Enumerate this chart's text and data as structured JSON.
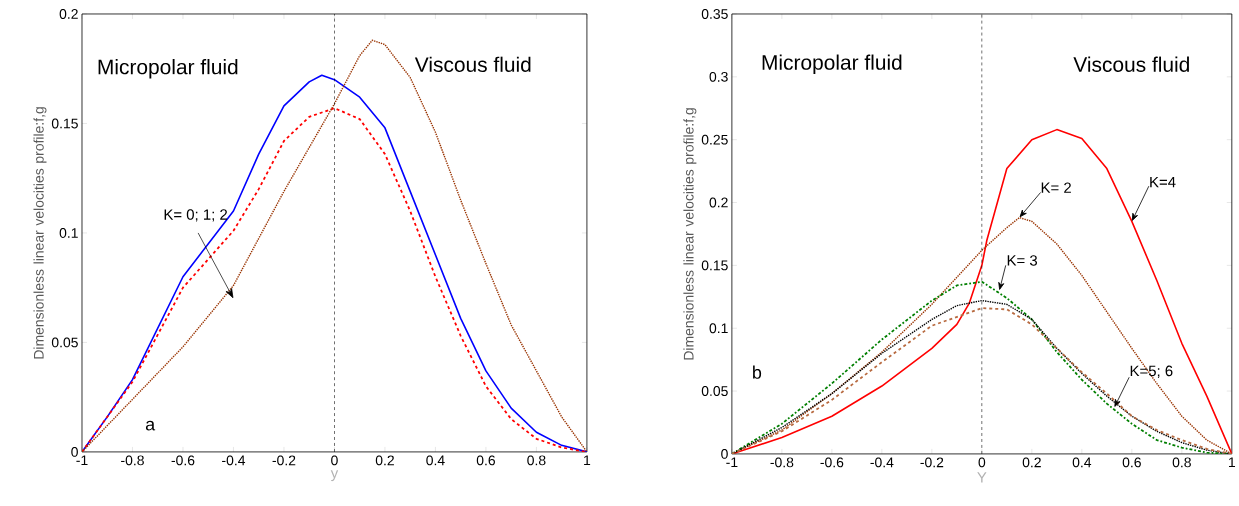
{
  "chart_data": [
    {
      "type": "line",
      "xlabel": "y",
      "ylabel": "Dimensionless linear velocities profile:f,g",
      "xlim": [
        -1,
        1
      ],
      "ylim": [
        0,
        0.2
      ],
      "xticks": [
        -1,
        -0.8,
        -0.6,
        -0.4,
        -0.2,
        0,
        0.2,
        0.4,
        0.6,
        0.8,
        1
      ],
      "yticks": [
        0,
        0.05,
        0.1,
        0.15,
        0.2
      ],
      "ref_lines": [
        {
          "axis": "x",
          "value": 0,
          "color": "#000000",
          "line_style": "dashed"
        }
      ],
      "annotations": [
        "Micropolar fluid",
        "Viscous fluid",
        "K= 0; 1; 2",
        "a"
      ],
      "series": [
        {
          "color": "#0000ff",
          "line_style": "solid",
          "x": [
            -1,
            -0.9,
            -0.8,
            -0.6,
            -0.4,
            -0.3,
            -0.2,
            -0.1,
            -0.05,
            0,
            0.1,
            0.2,
            0.3,
            0.4,
            0.5,
            0.6,
            0.7,
            0.8,
            0.9,
            1
          ],
          "values": [
            0,
            0.016,
            0.033,
            0.08,
            0.11,
            0.136,
            0.158,
            0.169,
            0.172,
            0.17,
            0.162,
            0.148,
            0.119,
            0.09,
            0.061,
            0.037,
            0.02,
            0.009,
            0.003,
            0
          ]
        },
        {
          "color": "#ff0000",
          "line_style": "dashed",
          "x": [
            -1,
            -0.8,
            -0.6,
            -0.4,
            -0.3,
            -0.2,
            -0.1,
            0,
            0.1,
            0.2,
            0.3,
            0.4,
            0.5,
            0.6,
            0.7,
            0.8,
            0.9,
            1
          ],
          "values": [
            0,
            0.032,
            0.075,
            0.101,
            0.12,
            0.142,
            0.153,
            0.157,
            0.152,
            0.136,
            0.11,
            0.08,
            0.053,
            0.03,
            0.015,
            0.006,
            0.002,
            0
          ]
        },
        {
          "color": "#993300",
          "line_style": "dotted",
          "x": [
            -1,
            -0.8,
            -0.6,
            -0.4,
            -0.2,
            0,
            0.1,
            0.15,
            0.2,
            0.3,
            0.4,
            0.5,
            0.6,
            0.7,
            0.8,
            0.9,
            1
          ],
          "values": [
            0,
            0.024,
            0.048,
            0.076,
            0.119,
            0.159,
            0.181,
            0.188,
            0.186,
            0.171,
            0.146,
            0.115,
            0.086,
            0.058,
            0.037,
            0.016,
            0
          ]
        }
      ]
    },
    {
      "type": "line",
      "xlabel": "Y",
      "ylabel": "Dimensionless linear velocities profile:f,g",
      "xlim": [
        -1,
        1
      ],
      "ylim": [
        0,
        0.35
      ],
      "xticks": [
        -1,
        -0.8,
        -0.6,
        -0.4,
        -0.2,
        0,
        0.2,
        0.4,
        0.6,
        0.8,
        1
      ],
      "yticks": [
        0,
        0.05,
        0.1,
        0.15,
        0.2,
        0.25,
        0.3,
        0.35
      ],
      "ref_lines": [
        {
          "axis": "x",
          "value": 0,
          "color": "#000000",
          "line_style": "dashed"
        }
      ],
      "annotations": [
        "Micropolar fluid",
        "Viscous fluid",
        "b",
        {
          "text": "K= 2",
          "x": 0.15,
          "y": 0.188
        },
        {
          "text": "K=4",
          "x": 0.6,
          "y": 0.185
        },
        {
          "text": "K= 3",
          "x": 0.07,
          "y": 0.13
        },
        {
          "text": "K=5; 6",
          "x": 0.53,
          "y": 0.037
        }
      ],
      "series": [
        {
          "color": "#ff0000",
          "line_style": "solid",
          "x": [
            -1,
            -0.8,
            -0.6,
            -0.4,
            -0.2,
            -0.1,
            -0.05,
            0,
            0.02,
            0.1,
            0.2,
            0.3,
            0.4,
            0.5,
            0.6,
            0.7,
            0.8,
            0.9,
            1
          ],
          "values": [
            0,
            0.013,
            0.03,
            0.054,
            0.084,
            0.103,
            0.12,
            0.15,
            0.17,
            0.227,
            0.25,
            0.258,
            0.251,
            0.227,
            0.185,
            0.138,
            0.088,
            0.046,
            0
          ]
        },
        {
          "color": "#993300",
          "line_style": "dotted",
          "x": [
            -1,
            -0.8,
            -0.6,
            -0.4,
            -0.2,
            0,
            0.1,
            0.15,
            0.2,
            0.3,
            0.4,
            0.5,
            0.6,
            0.7,
            0.8,
            0.9,
            1
          ],
          "values": [
            0,
            0.019,
            0.048,
            0.081,
            0.119,
            0.162,
            0.18,
            0.188,
            0.185,
            0.167,
            0.142,
            0.113,
            0.084,
            0.056,
            0.03,
            0.011,
            0
          ]
        },
        {
          "color": "#007f00",
          "line_style": "dashdot",
          "x": [
            -1,
            -0.8,
            -0.6,
            -0.4,
            -0.2,
            -0.1,
            0,
            0.1,
            0.2,
            0.3,
            0.4,
            0.5,
            0.6,
            0.7,
            0.8,
            0.9,
            1
          ],
          "values": [
            0,
            0.024,
            0.056,
            0.091,
            0.122,
            0.134,
            0.137,
            0.124,
            0.107,
            0.081,
            0.059,
            0.04,
            0.024,
            0.011,
            0.005,
            0.001,
            0
          ]
        },
        {
          "color": "#000000",
          "line_style": "dotted",
          "x": [
            -1,
            -0.8,
            -0.6,
            -0.4,
            -0.2,
            -0.1,
            0,
            0.1,
            0.2,
            0.3,
            0.4,
            0.5,
            0.6,
            0.7,
            0.8,
            0.9,
            1
          ],
          "values": [
            0,
            0.021,
            0.048,
            0.08,
            0.107,
            0.118,
            0.122,
            0.119,
            0.107,
            0.084,
            0.064,
            0.046,
            0.03,
            0.018,
            0.009,
            0.003,
            0
          ]
        },
        {
          "color": "#b86a40",
          "line_style": "dashed",
          "x": [
            -1,
            -0.8,
            -0.6,
            -0.4,
            -0.2,
            0,
            0.1,
            0.2,
            0.3,
            0.4,
            0.5,
            0.6,
            0.7,
            0.8,
            0.9,
            1
          ],
          "values": [
            0,
            0.018,
            0.043,
            0.073,
            0.102,
            0.116,
            0.115,
            0.103,
            0.084,
            0.065,
            0.048,
            0.03,
            0.019,
            0.011,
            0.004,
            0
          ]
        }
      ]
    }
  ]
}
